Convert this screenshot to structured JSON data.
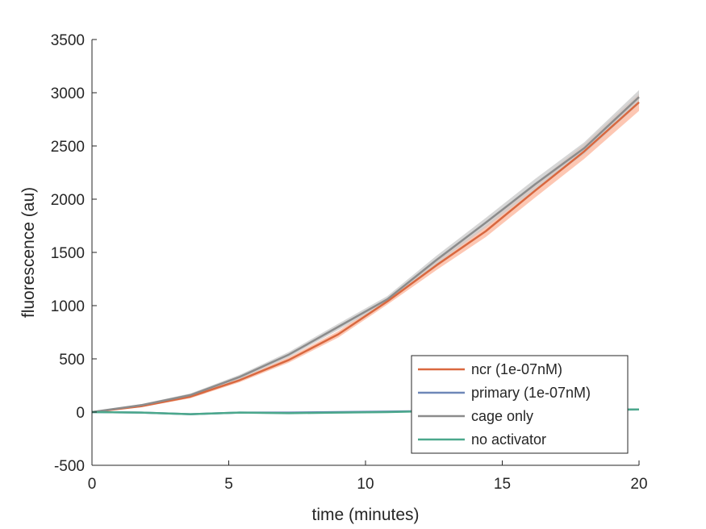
{
  "chart_data": {
    "type": "line",
    "title": "",
    "xlabel": "time (minutes)",
    "ylabel": "fluorescence (au)",
    "xlim": [
      0,
      20
    ],
    "ylim": [
      -500,
      3500
    ],
    "xticks": [
      0,
      5,
      10,
      15,
      20
    ],
    "yticks": [
      -500,
      0,
      500,
      1000,
      1500,
      2000,
      2500,
      3000,
      3500
    ],
    "xtick_labels": [
      "0",
      "5",
      "10",
      "15",
      "20"
    ],
    "ytick_labels": [
      "-500",
      "0",
      "500",
      "1000",
      "1500",
      "2000",
      "2500",
      "3000",
      "3500"
    ],
    "grid": false,
    "legend_position": "bottom-right",
    "x": [
      0,
      1.8,
      3.6,
      5.4,
      7.2,
      9.0,
      10.8,
      12.6,
      14.4,
      16.2,
      18.0,
      20.0
    ],
    "series": [
      {
        "name": "ncr (1e-07nM)",
        "color": "#d9683f",
        "band_color": "#fcb9a0",
        "values": [
          0,
          55,
          145,
          300,
          490,
          730,
          1040,
          1380,
          1700,
          2080,
          2450,
          2910
        ],
        "band_halfwidth": [
          0,
          10,
          15,
          20,
          25,
          30,
          30,
          45,
          55,
          65,
          70,
          80
        ]
      },
      {
        "name": "primary (1e-07nM)",
        "color": "#6f87b8",
        "band_color": "#b7c6e2",
        "values": [
          0,
          -5,
          -20,
          -5,
          -5,
          0,
          5,
          10,
          15,
          15,
          20,
          25
        ],
        "band_halfwidth": [
          0,
          5,
          5,
          5,
          5,
          5,
          5,
          5,
          5,
          5,
          5,
          5
        ]
      },
      {
        "name": "cage only",
        "color": "#8c8c8c",
        "band_color": "#cccccc",
        "values": [
          0,
          65,
          160,
          330,
          540,
          800,
          1060,
          1430,
          1780,
          2140,
          2480,
          2960
        ],
        "band_halfwidth": [
          0,
          10,
          15,
          20,
          25,
          30,
          30,
          40,
          45,
          50,
          55,
          65
        ]
      },
      {
        "name": "no activator",
        "color": "#4ba88c",
        "band_color": "#a8d8c8",
        "values": [
          0,
          -5,
          -20,
          -5,
          -10,
          -5,
          0,
          10,
          15,
          15,
          20,
          25
        ],
        "band_halfwidth": [
          0,
          5,
          8,
          8,
          8,
          8,
          8,
          8,
          8,
          8,
          8,
          8
        ]
      }
    ]
  }
}
